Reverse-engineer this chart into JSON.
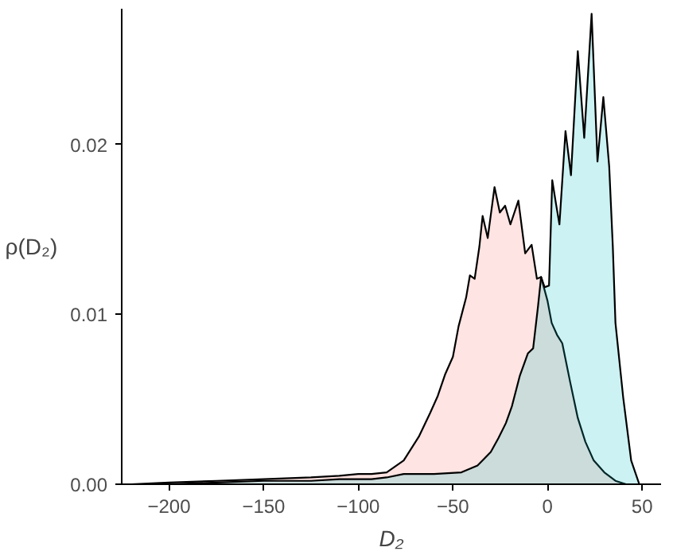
{
  "chart_data": {
    "type": "area",
    "xlabel": "D₂",
    "ylabel": "ρ(D₂)",
    "xlim": [
      -225,
      60
    ],
    "ylim": [
      0,
      0.028
    ],
    "xticks": [
      -200,
      -150,
      -100,
      -50,
      0,
      50
    ],
    "yticks": [
      {
        "value": 0,
        "label": "0.00"
      },
      {
        "value": 0.01,
        "label": "0.01"
      },
      {
        "value": 0.02,
        "label": "0.02"
      }
    ],
    "grid": false,
    "series": [
      {
        "color": "#f8766d",
        "x": [
          -220,
          -200,
          -175,
          -150,
          -125,
          -110,
          -100,
          -93,
          -85,
          -76,
          -68,
          -62,
          -58,
          -54,
          -50,
          -47,
          -43,
          -41,
          -38.5,
          -36,
          -34.3,
          -31.6,
          -28,
          -25.2,
          -22.4,
          -19.6,
          -15.4,
          -11.8,
          -8.4,
          -5.6,
          -3.4,
          0,
          2.2,
          5,
          7.8,
          12,
          16,
          20,
          24.4,
          30,
          35.9,
          41.5,
          48
        ],
        "values": [
          0,
          0.0001,
          0.0002,
          0.0003,
          0.0004,
          0.0005,
          0.0006,
          0.0006,
          0.0007,
          0.0014,
          0.0028,
          0.0042,
          0.0052,
          0.0065,
          0.0075,
          0.0093,
          0.011,
          0.0123,
          0.0121,
          0.014,
          0.0158,
          0.0145,
          0.0175,
          0.016,
          0.0164,
          0.0153,
          0.0167,
          0.0136,
          0.0141,
          0.0121,
          0.0122,
          0.0108,
          0.0095,
          0.0088,
          0.0083,
          0.006,
          0.0039,
          0.0025,
          0.0014,
          0.0007,
          0.0002,
          0,
          0
        ]
      },
      {
        "color": "#00bfc4",
        "x": [
          -220,
          -200,
          -175,
          -150,
          -125,
          -110,
          -93,
          -85,
          -76,
          -60,
          -45.5,
          -37,
          -30,
          -26,
          -22,
          -18.8,
          -14.6,
          -10.4,
          -7.6,
          -5,
          -3.4,
          -1.5,
          0.8,
          2.5,
          4.5,
          6.3,
          9.5,
          12.4,
          16,
          19.4,
          23.3,
          26.4,
          29.5,
          32.6,
          34.5,
          35.9,
          40,
          44.2,
          48.5,
          52
        ],
        "values": [
          0,
          0,
          0.0001,
          0.0002,
          0.0002,
          0.0003,
          0.0003,
          0.0004,
          0.0006,
          0.0006,
          0.0007,
          0.0011,
          0.0019,
          0.0027,
          0.0036,
          0.0046,
          0.0064,
          0.0077,
          0.008,
          0.0105,
          0.0122,
          0.0116,
          0.0117,
          0.0179,
          0.0165,
          0.0153,
          0.0208,
          0.0182,
          0.0255,
          0.0204,
          0.0277,
          0.019,
          0.0228,
          0.0187,
          0.014,
          0.0095,
          0.0051,
          0.0014,
          0,
          0
        ]
      }
    ]
  }
}
